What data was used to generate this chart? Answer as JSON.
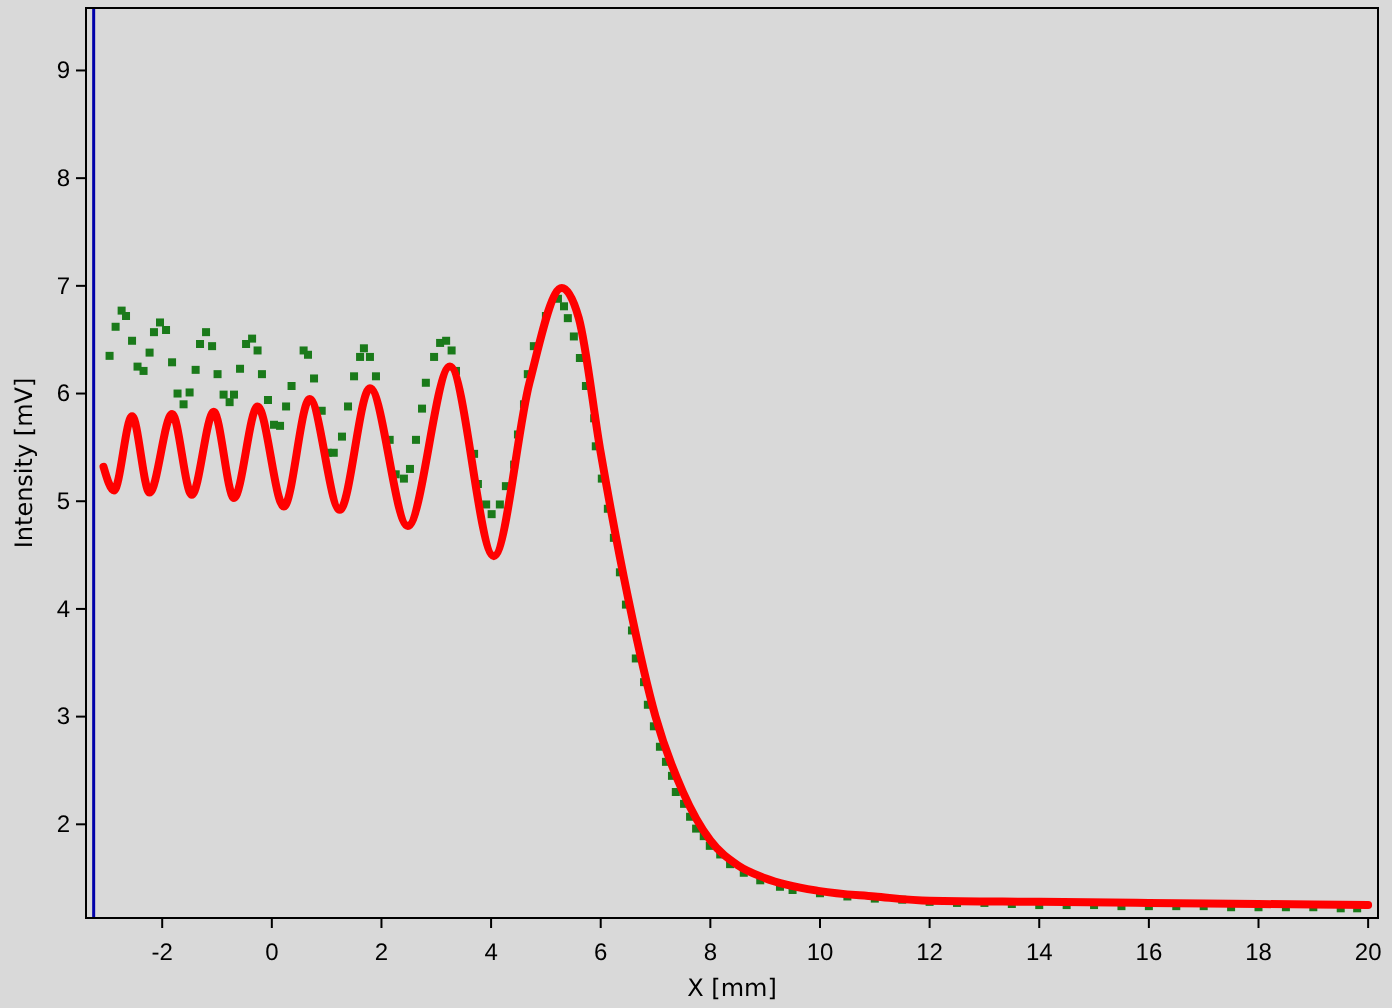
{
  "chart_data": {
    "type": "line",
    "xlabel": "X [mm]",
    "ylabel": "Intensity [mV]",
    "xlim": [
      -3.39,
      20.18
    ],
    "ylim": [
      1.13,
      9.58
    ],
    "xticks": [
      -2,
      0,
      2,
      4,
      6,
      8,
      10,
      12,
      14,
      16,
      18,
      20
    ],
    "yticks": [
      2,
      3,
      4,
      5,
      6,
      7,
      8,
      9
    ],
    "grid": false,
    "ref_lines": [
      {
        "axis": "x",
        "value": -3.25,
        "color": "#0000aa"
      }
    ],
    "series": [
      {
        "type": "scatter",
        "marker": "square",
        "color": "#1a7a1a",
        "x": [
          -2.96,
          -2.85,
          -2.74,
          -2.66,
          -2.55,
          -2.45,
          -2.34,
          -2.23,
          -2.15,
          -2.04,
          -1.93,
          -1.82,
          -1.72,
          -1.61,
          -1.5,
          -1.39,
          -1.31,
          -1.2,
          -1.09,
          -0.99,
          -0.88,
          -0.77,
          -0.69,
          -0.58,
          -0.47,
          -0.36,
          -0.26,
          -0.18,
          -0.07,
          0.04,
          0.15,
          0.26,
          0.36,
          0.58,
          0.66,
          0.77,
          0.91,
          1.02,
          1.13,
          1.28,
          1.39,
          1.5,
          1.61,
          1.68,
          1.79,
          1.9,
          2.15,
          2.26,
          2.41,
          2.52,
          2.63,
          2.74,
          2.81,
          2.96,
          3.07,
          3.18,
          3.28,
          3.36,
          3.69,
          3.76,
          3.91,
          4.01,
          4.16,
          4.27,
          4.42,
          4.49,
          4.6,
          4.67,
          4.78,
          5.0,
          5.22,
          5.33,
          5.4,
          5.51,
          5.62,
          5.73,
          5.88,
          5.91,
          6.02,
          6.13,
          6.24,
          6.35,
          6.46,
          6.57,
          6.64,
          6.79,
          6.86,
          6.97,
          7.08,
          7.19,
          7.3,
          7.37,
          7.52,
          7.63,
          7.74,
          7.88,
          7.99,
          8.18,
          8.36,
          8.61,
          8.91,
          9.27,
          9.5,
          10,
          10.5,
          11,
          11.5,
          12,
          12.5,
          13,
          13.5,
          14,
          14.5,
          15,
          15.5,
          16,
          16.5,
          17,
          17.5,
          18,
          18.5,
          19,
          19.5,
          19.8
        ],
        "values": [
          6.35,
          6.62,
          6.77,
          6.72,
          6.49,
          6.25,
          6.21,
          6.38,
          6.57,
          6.66,
          6.59,
          6.29,
          6.0,
          5.9,
          6.01,
          6.22,
          6.46,
          6.57,
          6.44,
          6.18,
          5.99,
          5.92,
          5.99,
          6.23,
          6.46,
          6.51,
          6.4,
          6.18,
          5.94,
          5.71,
          5.7,
          5.88,
          6.07,
          6.4,
          6.36,
          6.14,
          5.84,
          5.45,
          5.45,
          5.6,
          5.88,
          6.16,
          6.34,
          6.42,
          6.34,
          6.16,
          5.57,
          5.25,
          5.21,
          5.3,
          5.57,
          5.86,
          6.1,
          6.34,
          6.47,
          6.49,
          6.4,
          6.21,
          5.44,
          5.16,
          4.97,
          4.88,
          4.97,
          5.14,
          5.34,
          5.62,
          5.9,
          6.18,
          6.44,
          6.72,
          6.88,
          6.81,
          6.7,
          6.53,
          6.33,
          6.07,
          5.77,
          5.51,
          5.21,
          4.93,
          4.66,
          4.34,
          4.04,
          3.8,
          3.54,
          3.32,
          3.11,
          2.91,
          2.72,
          2.58,
          2.45,
          2.3,
          2.19,
          2.07,
          1.96,
          1.89,
          1.8,
          1.72,
          1.63,
          1.55,
          1.48,
          1.42,
          1.39,
          1.36,
          1.33,
          1.31,
          1.3,
          1.28,
          1.27,
          1.27,
          1.26,
          1.25,
          1.25,
          1.25,
          1.24,
          1.24,
          1.24,
          1.24,
          1.23,
          1.23,
          1.23,
          1.23,
          1.22,
          1.22
        ]
      },
      {
        "color": "#ff0000",
        "x": [
          -3.07,
          -2.88,
          -2.55,
          -2.23,
          -1.82,
          -1.46,
          -1.06,
          -0.69,
          -0.26,
          0.22,
          0.69,
          1.24,
          1.79,
          2.48,
          3.25,
          4.05,
          4.7,
          5.29,
          5.6,
          6,
          6.5,
          7,
          7.5,
          8,
          8.5,
          9,
          10,
          11,
          12,
          14,
          16,
          18,
          20
        ],
        "values": [
          5.32,
          5.1,
          5.79,
          5.08,
          5.81,
          5.06,
          5.83,
          5.03,
          5.88,
          4.95,
          5.95,
          4.92,
          6.05,
          4.77,
          6.25,
          4.49,
          6.1,
          6.98,
          6.7,
          5.45,
          4.1,
          3.0,
          2.3,
          1.85,
          1.62,
          1.5,
          1.38,
          1.33,
          1.29,
          1.28,
          1.27,
          1.26,
          1.25
        ]
      }
    ]
  }
}
